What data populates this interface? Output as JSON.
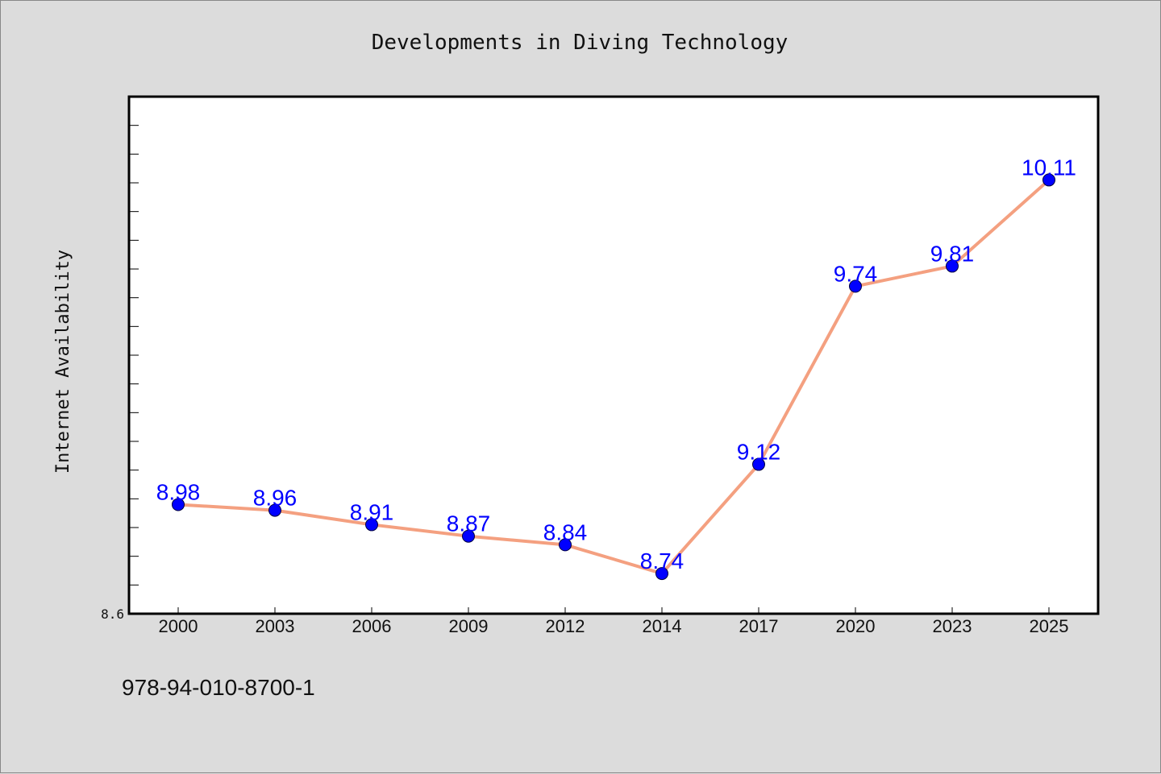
{
  "chart_data": {
    "type": "line",
    "title": "Developments in Diving Technology",
    "xlabel": "",
    "ylabel": "Internet Availability",
    "categories": [
      "2000",
      "2003",
      "2006",
      "2009",
      "2012",
      "2014",
      "2017",
      "2020",
      "2023",
      "2025"
    ],
    "series": [
      {
        "values": [
          8.98,
          8.96,
          8.91,
          8.87,
          8.84,
          8.74,
          9.12,
          9.74,
          9.81,
          10.11
        ],
        "labels": [
          "8.98",
          "8.96",
          "8.91",
          "8.87",
          "8.84",
          "8.74",
          "9.12",
          "9.74",
          "9.81",
          "10.11"
        ]
      }
    ],
    "ylim": [
      8.6,
      10.4
    ],
    "ytick_labels": [
      "8.6"
    ],
    "grid": false,
    "colors": {
      "line": "#f4a080",
      "marker": "#0000ff",
      "data_label": "#0000ff",
      "plot_bg": "#ffffff",
      "page_bg": "#dcdcdc"
    }
  },
  "footer": {
    "isbn": "978-94-010-8700-1"
  }
}
